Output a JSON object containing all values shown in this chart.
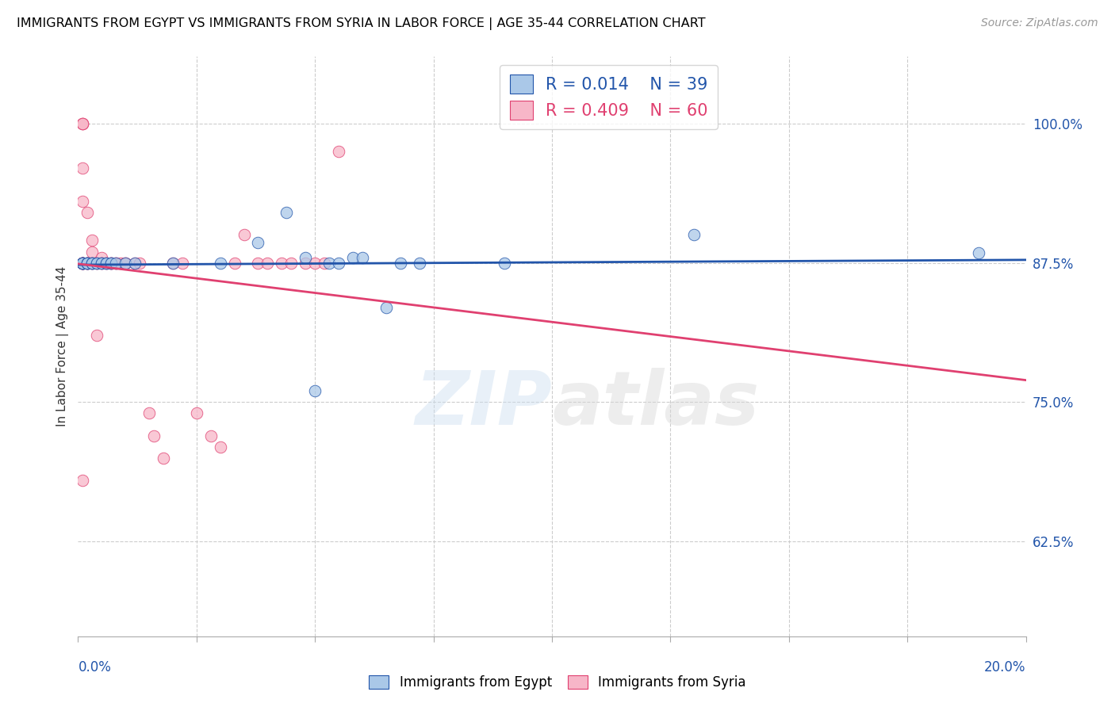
{
  "title": "IMMIGRANTS FROM EGYPT VS IMMIGRANTS FROM SYRIA IN LABOR FORCE | AGE 35-44 CORRELATION CHART",
  "source": "Source: ZipAtlas.com",
  "ylabel": "In Labor Force | Age 35-44",
  "ytick_labels": [
    "62.5%",
    "75.0%",
    "87.5%",
    "100.0%"
  ],
  "ytick_values": [
    0.625,
    0.75,
    0.875,
    1.0
  ],
  "xlim": [
    0.0,
    0.2
  ],
  "ylim": [
    0.54,
    1.06
  ],
  "legend_egypt_R": "0.014",
  "legend_egypt_N": "39",
  "legend_syria_R": "0.409",
  "legend_syria_N": "60",
  "color_egypt": "#aac8e8",
  "color_syria": "#f7b6c8",
  "trendline_egypt_color": "#2255aa",
  "trendline_syria_color": "#e04070",
  "watermark_zip": "ZIP",
  "watermark_atlas": "atlas",
  "egypt_x": [
    0.001,
    0.001,
    0.001,
    0.001,
    0.001,
    0.002,
    0.002,
    0.002,
    0.002,
    0.003,
    0.003,
    0.003,
    0.004,
    0.004,
    0.005,
    0.005,
    0.006,
    0.006,
    0.007,
    0.007,
    0.008,
    0.01,
    0.012,
    0.02,
    0.03,
    0.038,
    0.044,
    0.048,
    0.05,
    0.053,
    0.055,
    0.058,
    0.06,
    0.065,
    0.068,
    0.072,
    0.09,
    0.13,
    0.19
  ],
  "egypt_y": [
    0.875,
    0.875,
    0.875,
    0.875,
    0.875,
    0.875,
    0.875,
    0.875,
    0.875,
    0.875,
    0.875,
    0.875,
    0.875,
    0.875,
    0.875,
    0.875,
    0.875,
    0.875,
    0.875,
    0.875,
    0.875,
    0.875,
    0.875,
    0.875,
    0.875,
    0.893,
    0.92,
    0.88,
    0.76,
    0.875,
    0.875,
    0.88,
    0.88,
    0.835,
    0.875,
    0.875,
    0.875,
    0.9,
    0.884
  ],
  "syria_x": [
    0.001,
    0.001,
    0.001,
    0.001,
    0.001,
    0.001,
    0.001,
    0.001,
    0.001,
    0.001,
    0.001,
    0.001,
    0.001,
    0.001,
    0.001,
    0.002,
    0.002,
    0.002,
    0.002,
    0.002,
    0.003,
    0.003,
    0.003,
    0.003,
    0.004,
    0.004,
    0.004,
    0.005,
    0.005,
    0.005,
    0.006,
    0.006,
    0.007,
    0.007,
    0.007,
    0.008,
    0.008,
    0.009,
    0.01,
    0.01,
    0.012,
    0.013,
    0.015,
    0.016,
    0.018,
    0.02,
    0.022,
    0.025,
    0.028,
    0.03,
    0.033,
    0.035,
    0.038,
    0.04,
    0.043,
    0.045,
    0.048,
    0.05,
    0.052,
    0.055
  ],
  "syria_y": [
    1.0,
    1.0,
    1.0,
    0.96,
    0.93,
    0.875,
    0.875,
    0.875,
    0.875,
    0.875,
    0.875,
    0.875,
    0.875,
    0.875,
    0.68,
    0.92,
    0.875,
    0.875,
    0.875,
    0.875,
    0.895,
    0.885,
    0.875,
    0.875,
    0.875,
    0.875,
    0.81,
    0.88,
    0.875,
    0.875,
    0.875,
    0.875,
    0.875,
    0.875,
    0.875,
    0.875,
    0.875,
    0.875,
    0.875,
    0.875,
    0.875,
    0.875,
    0.74,
    0.72,
    0.7,
    0.875,
    0.875,
    0.74,
    0.72,
    0.71,
    0.875,
    0.9,
    0.875,
    0.875,
    0.875,
    0.875,
    0.875,
    0.875,
    0.875,
    0.975
  ]
}
